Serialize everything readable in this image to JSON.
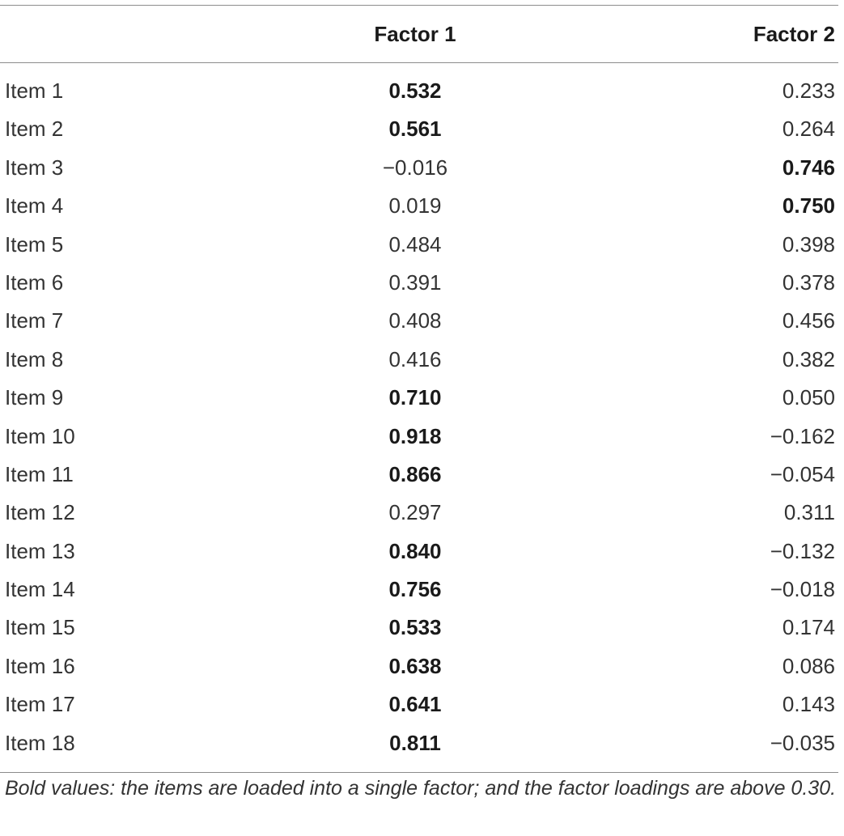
{
  "table": {
    "headers": [
      "",
      "Factor 1",
      "Factor 2"
    ],
    "rows": [
      {
        "item": "Item 1",
        "f1": "0.532",
        "f1_bold": true,
        "f2": "0.233",
        "f2_bold": false
      },
      {
        "item": "Item 2",
        "f1": "0.561",
        "f1_bold": true,
        "f2": "0.264",
        "f2_bold": false
      },
      {
        "item": "Item 3",
        "f1": "−0.016",
        "f1_bold": false,
        "f2": "0.746",
        "f2_bold": true
      },
      {
        "item": "Item 4",
        "f1": "0.019",
        "f1_bold": false,
        "f2": "0.750",
        "f2_bold": true
      },
      {
        "item": "Item 5",
        "f1": "0.484",
        "f1_bold": false,
        "f2": "0.398",
        "f2_bold": false
      },
      {
        "item": "Item 6",
        "f1": "0.391",
        "f1_bold": false,
        "f2": "0.378",
        "f2_bold": false
      },
      {
        "item": "Item 7",
        "f1": "0.408",
        "f1_bold": false,
        "f2": "0.456",
        "f2_bold": false
      },
      {
        "item": "Item 8",
        "f1": "0.416",
        "f1_bold": false,
        "f2": "0.382",
        "f2_bold": false
      },
      {
        "item": "Item 9",
        "f1": "0.710",
        "f1_bold": true,
        "f2": "0.050",
        "f2_bold": false
      },
      {
        "item": "Item 10",
        "f1": "0.918",
        "f1_bold": true,
        "f2": "−0.162",
        "f2_bold": false
      },
      {
        "item": "Item 11",
        "f1": "0.866",
        "f1_bold": true,
        "f2": "−0.054",
        "f2_bold": false
      },
      {
        "item": "Item 12",
        "f1": "0.297",
        "f1_bold": false,
        "f2": "0.311",
        "f2_bold": false
      },
      {
        "item": "Item 13",
        "f1": "0.840",
        "f1_bold": true,
        "f2": "−0.132",
        "f2_bold": false
      },
      {
        "item": "Item 14",
        "f1": "0.756",
        "f1_bold": true,
        "f2": "−0.018",
        "f2_bold": false
      },
      {
        "item": "Item 15",
        "f1": "0.533",
        "f1_bold": true,
        "f2": "0.174",
        "f2_bold": false
      },
      {
        "item": "Item 16",
        "f1": "0.638",
        "f1_bold": true,
        "f2": "0.086",
        "f2_bold": false
      },
      {
        "item": "Item 17",
        "f1": "0.641",
        "f1_bold": true,
        "f2": "0.143",
        "f2_bold": false
      },
      {
        "item": "Item 18",
        "f1": "0.811",
        "f1_bold": true,
        "f2": "−0.035",
        "f2_bold": false
      }
    ]
  },
  "footnote": "Bold values: the items are loaded into a single factor; and the factor loadings are above 0.30."
}
